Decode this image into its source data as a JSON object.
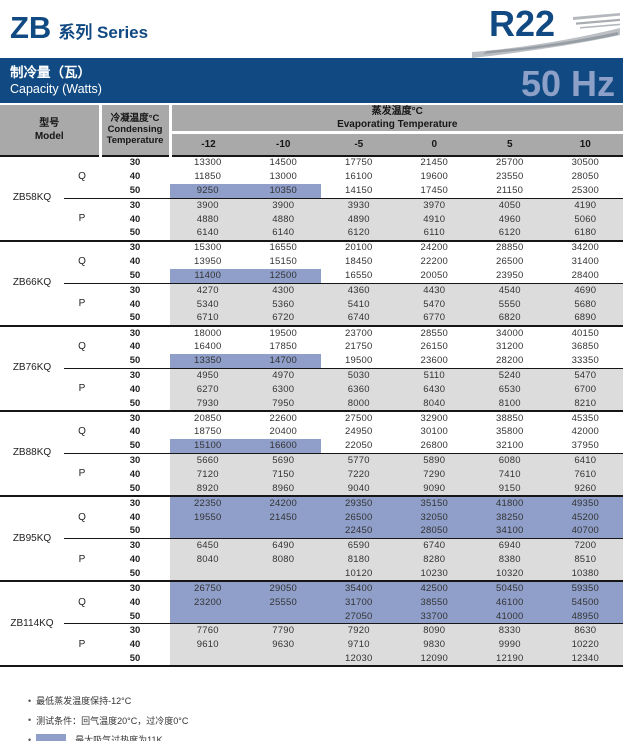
{
  "colors": {
    "navy": "#114a82",
    "freq": "#8da0c7",
    "blue": "#8f9fc9",
    "gray": "#dcdcdd",
    "headergray": "#a9a9a9"
  },
  "page": {
    "title_main": "ZB",
    "title_sub": "系列 Series",
    "logo": "R22",
    "banner_cn": "制冷量（瓦）",
    "banner_en": "Capacity (Watts)",
    "freq": "50 Hz"
  },
  "table": {
    "header": {
      "model_cn": "型号",
      "model_en": "Model",
      "cond_cn": "冷凝温度°C",
      "cond_en1": "Condensing",
      "cond_en2": "Temperature",
      "evap_cn": "蒸发温度°C",
      "evap_en": "Evaporating Temperature",
      "evap_temps": [
        "-12",
        "-10",
        "-5",
        "0",
        "5",
        "10"
      ]
    },
    "q_label": "Q",
    "p_label": "P",
    "models": [
      {
        "name": "ZB58KQ",
        "q_highlight": "partial",
        "q": [
          [
            "30",
            "13300",
            "14500",
            "17750",
            "21450",
            "25700",
            "30500"
          ],
          [
            "40",
            "11850",
            "13000",
            "16100",
            "19600",
            "23550",
            "28050"
          ],
          [
            "50",
            "9250",
            "10350",
            "14150",
            "17450",
            "21150",
            "25300"
          ]
        ],
        "p": [
          [
            "30",
            "3900",
            "3900",
            "3930",
            "3970",
            "4050",
            "4190"
          ],
          [
            "40",
            "4880",
            "4880",
            "4890",
            "4910",
            "4960",
            "5060"
          ],
          [
            "50",
            "6140",
            "6140",
            "6120",
            "6110",
            "6120",
            "6180"
          ]
        ]
      },
      {
        "name": "ZB66KQ",
        "q_highlight": "partial",
        "q": [
          [
            "30",
            "15300",
            "16550",
            "20100",
            "24200",
            "28850",
            "34200"
          ],
          [
            "40",
            "13950",
            "15150",
            "18450",
            "22200",
            "26500",
            "31400"
          ],
          [
            "50",
            "11400",
            "12500",
            "16550",
            "20050",
            "23950",
            "28400"
          ]
        ],
        "p": [
          [
            "30",
            "4270",
            "4300",
            "4360",
            "4430",
            "4540",
            "4690"
          ],
          [
            "40",
            "5340",
            "5360",
            "5410",
            "5470",
            "5550",
            "5680"
          ],
          [
            "50",
            "6710",
            "6720",
            "6740",
            "6770",
            "6820",
            "6890"
          ]
        ]
      },
      {
        "name": "ZB76KQ",
        "q_highlight": "partial",
        "q": [
          [
            "30",
            "18000",
            "19500",
            "23700",
            "28550",
            "34000",
            "40150"
          ],
          [
            "40",
            "16400",
            "17850",
            "21750",
            "26150",
            "31200",
            "36850"
          ],
          [
            "50",
            "13350",
            "14700",
            "19500",
            "23600",
            "28200",
            "33350"
          ]
        ],
        "p": [
          [
            "30",
            "4950",
            "4970",
            "5030",
            "5110",
            "5240",
            "5470"
          ],
          [
            "40",
            "6270",
            "6300",
            "6360",
            "6430",
            "6530",
            "6700"
          ],
          [
            "50",
            "7930",
            "7950",
            "8000",
            "8040",
            "8100",
            "8210"
          ]
        ]
      },
      {
        "name": "ZB88KQ",
        "q_highlight": "partial",
        "q": [
          [
            "30",
            "20850",
            "22600",
            "27500",
            "32900",
            "38850",
            "45350"
          ],
          [
            "40",
            "18750",
            "20400",
            "24950",
            "30100",
            "35800",
            "42000"
          ],
          [
            "50",
            "15100",
            "16600",
            "22050",
            "26800",
            "32100",
            "37950"
          ]
        ],
        "p": [
          [
            "30",
            "5660",
            "5690",
            "5770",
            "5890",
            "6080",
            "6410"
          ],
          [
            "40",
            "7120",
            "7150",
            "7220",
            "7290",
            "7410",
            "7610"
          ],
          [
            "50",
            "8920",
            "8960",
            "9040",
            "9090",
            "9150",
            "9260"
          ]
        ]
      },
      {
        "name": "ZB95KQ",
        "q_highlight": "full",
        "q": [
          [
            "30",
            "22350",
            "24200",
            "29350",
            "35150",
            "41800",
            "49350"
          ],
          [
            "40",
            "19550",
            "21450",
            "26500",
            "32050",
            "38250",
            "45200"
          ],
          [
            "50",
            "",
            "",
            "22450",
            "28050",
            "34100",
            "40700"
          ]
        ],
        "p": [
          [
            "30",
            "6450",
            "6490",
            "6590",
            "6740",
            "6940",
            "7200"
          ],
          [
            "40",
            "8040",
            "8080",
            "8180",
            "8280",
            "8380",
            "8510"
          ],
          [
            "50",
            "",
            "",
            "10120",
            "10230",
            "10320",
            "10380"
          ]
        ]
      },
      {
        "name": "ZB114KQ",
        "q_highlight": "full",
        "q": [
          [
            "30",
            "26750",
            "29050",
            "35400",
            "42500",
            "50450",
            "59350"
          ],
          [
            "40",
            "23200",
            "25550",
            "31700",
            "38550",
            "46100",
            "54500"
          ],
          [
            "50",
            "",
            "",
            "27050",
            "33700",
            "41000",
            "48950"
          ]
        ],
        "p": [
          [
            "30",
            "7760",
            "7790",
            "7920",
            "8090",
            "8330",
            "8630"
          ],
          [
            "40",
            "9610",
            "9630",
            "9710",
            "9830",
            "9990",
            "10220"
          ],
          [
            "50",
            "",
            "",
            "12030",
            "12090",
            "12190",
            "12340"
          ]
        ]
      }
    ]
  },
  "notes": [
    "最低蒸发温度保持-12°C",
    "测试条件：回气温度20°C，过冷度0°C",
    "最大吸气过热度为11K"
  ]
}
